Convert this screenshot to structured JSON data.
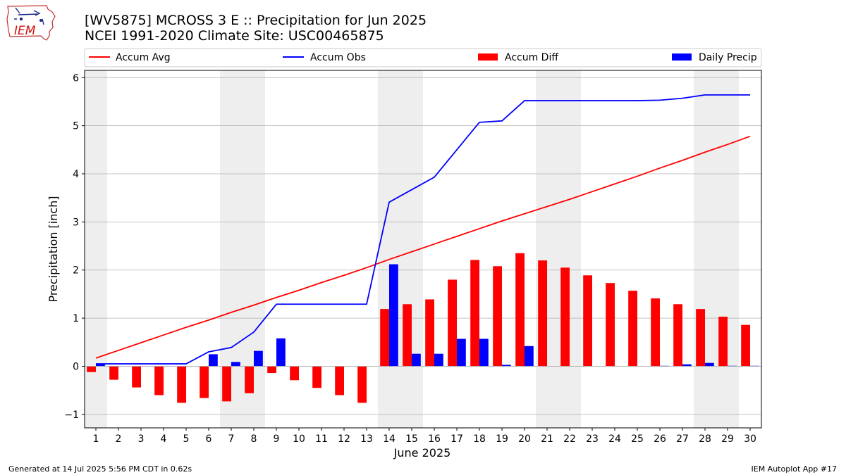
{
  "header": {
    "title": "[WV5875] MCROSS 3 E :: Precipitation for Jun 2025",
    "subtitle": "NCEI 1991-2020 Climate Site: USC00465875"
  },
  "logo": {
    "text": "IEM",
    "icon": "iowa-state-outline-icon"
  },
  "footer": {
    "generated": "Generated at 14 Jul 2025 5:56 PM CDT in 0.62s",
    "app": "IEM Autoplot App #17"
  },
  "colors": {
    "accum_avg": "#ff0000",
    "accum_obs": "#0000ff",
    "accum_diff": "#ff0000",
    "daily_precip": "#0000ff",
    "weekend_shade": "#eeeeee",
    "grid": "#b0b0b0"
  },
  "chart_data": {
    "type": "bar",
    "xlabel": "June 2025",
    "ylabel": "Precipitation [inch]",
    "xlim": [
      0.5,
      30.5
    ],
    "ylim": [
      -1.28,
      6.15
    ],
    "yticks": [
      -1,
      0,
      1,
      2,
      3,
      4,
      5,
      6
    ],
    "x": [
      1,
      2,
      3,
      4,
      5,
      6,
      7,
      8,
      9,
      10,
      11,
      12,
      13,
      14,
      15,
      16,
      17,
      18,
      19,
      20,
      21,
      22,
      23,
      24,
      25,
      26,
      27,
      28,
      29,
      30
    ],
    "xtick_labels": [
      "1",
      "2",
      "3",
      "4",
      "5",
      "6",
      "7",
      "8",
      "9",
      "10",
      "11",
      "12",
      "13",
      "14",
      "15",
      "16",
      "17",
      "18",
      "19",
      "20",
      "21",
      "22",
      "23",
      "24",
      "25",
      "26",
      "27",
      "28",
      "29",
      "30"
    ],
    "grid": "horizontal",
    "legend_position": "top",
    "weekend_days": [
      1,
      7,
      8,
      14,
      15,
      21,
      22,
      28,
      29
    ],
    "series": [
      {
        "name": "Accum Avg",
        "kind": "line",
        "values": [
          0.17,
          0.33,
          0.49,
          0.65,
          0.81,
          0.96,
          1.12,
          1.27,
          1.43,
          1.58,
          1.74,
          1.89,
          2.05,
          2.22,
          2.38,
          2.54,
          2.7,
          2.86,
          3.02,
          3.17,
          3.32,
          3.47,
          3.63,
          3.79,
          3.95,
          4.12,
          4.28,
          4.45,
          4.61,
          4.78
        ]
      },
      {
        "name": "Accum Obs",
        "kind": "line",
        "values": [
          0.05,
          0.05,
          0.05,
          0.05,
          0.05,
          0.3,
          0.39,
          0.71,
          1.29,
          1.29,
          1.29,
          1.29,
          1.29,
          3.41,
          3.67,
          3.93,
          4.5,
          5.07,
          5.1,
          5.52,
          5.52,
          5.52,
          5.52,
          5.52,
          5.52,
          5.53,
          5.57,
          5.64,
          5.64,
          5.64
        ]
      },
      {
        "name": "Accum Diff",
        "kind": "bar",
        "values": [
          -0.12,
          -0.28,
          -0.44,
          -0.6,
          -0.76,
          -0.66,
          -0.73,
          -0.56,
          -0.14,
          -0.29,
          -0.45,
          -0.6,
          -0.76,
          1.19,
          1.29,
          1.39,
          1.8,
          2.21,
          2.08,
          2.35,
          2.2,
          2.05,
          1.89,
          1.73,
          1.57,
          1.41,
          1.29,
          1.19,
          1.03,
          0.86
        ]
      },
      {
        "name": "Daily Precip",
        "kind": "bar",
        "values": [
          0.05,
          0,
          0,
          0,
          0,
          0.25,
          0.09,
          0.32,
          0.58,
          0,
          0,
          0,
          0,
          2.12,
          0.26,
          0.26,
          0.57,
          0.57,
          0.03,
          0.42,
          0,
          0,
          0,
          0,
          0,
          0.01,
          0.04,
          0.07,
          0.01,
          0.01
        ]
      }
    ]
  }
}
